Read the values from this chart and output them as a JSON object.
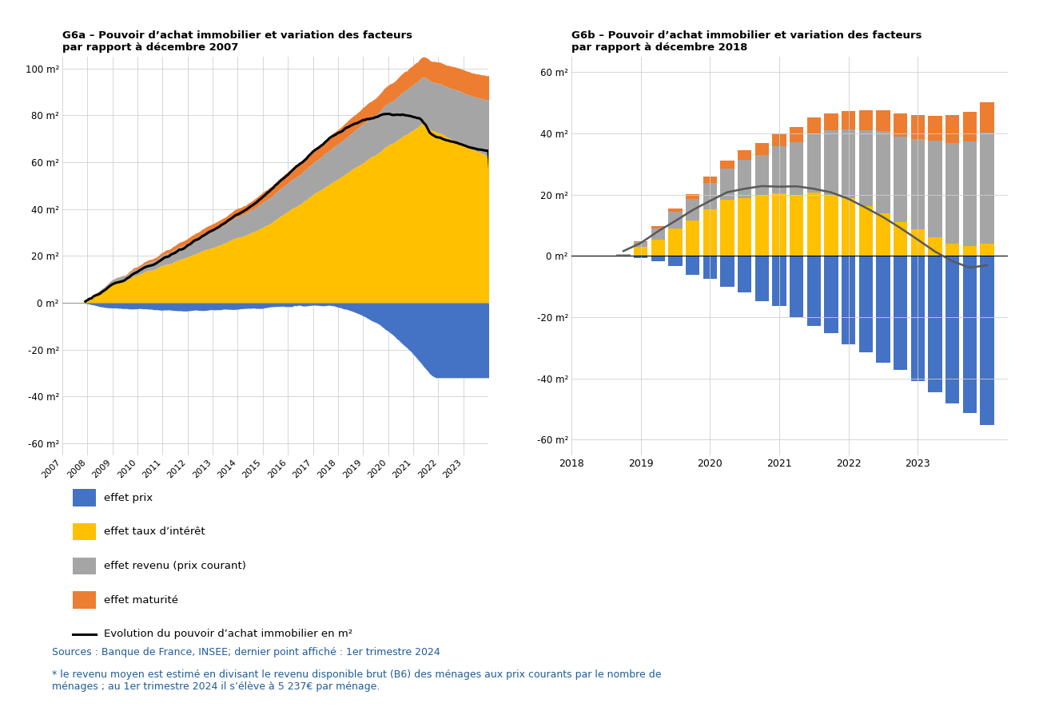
{
  "title_a": "G6a – Pouvoir d’achat immobilier et variation des facteurs\npar rapport à décembre 2007",
  "title_b": "G6b – Pouvoir d’achat immobilier et variation des facteurs\npar rapport à décembre 2018",
  "color_prix": "#4472C4",
  "color_taux": "#FFC000",
  "color_revenu": "#A5A5A5",
  "color_maturite": "#ED7D31",
  "color_line_a": "#000000",
  "color_line_b": "#595959",
  "legend_labels": [
    "effet prix",
    "effet taux d’intérêt",
    "effet revenu (prix courant)",
    "effet maturité",
    "Evolution du pouvoir d’achat immobilier en m²"
  ],
  "source_text": "Sources : Banque de France, INSEE; dernier point affiché : 1er trimestre 2024",
  "footnote_text": "* le revenu moyen est estimé en divisant le revenu disponible brut (B6) des ménages aux prix courants par le nombre de\nménages ; au 1er trimestre 2024 il s’élève à 5 237€ par ménage.",
  "ylim_a": [
    -65,
    105
  ],
  "yticks_a": [
    -60,
    -40,
    -20,
    0,
    20,
    40,
    60,
    80,
    100
  ],
  "ylim_b": [
    -65,
    65
  ],
  "yticks_b": [
    -60,
    -40,
    -20,
    0,
    20,
    40,
    60
  ],
  "background": "#ffffff"
}
